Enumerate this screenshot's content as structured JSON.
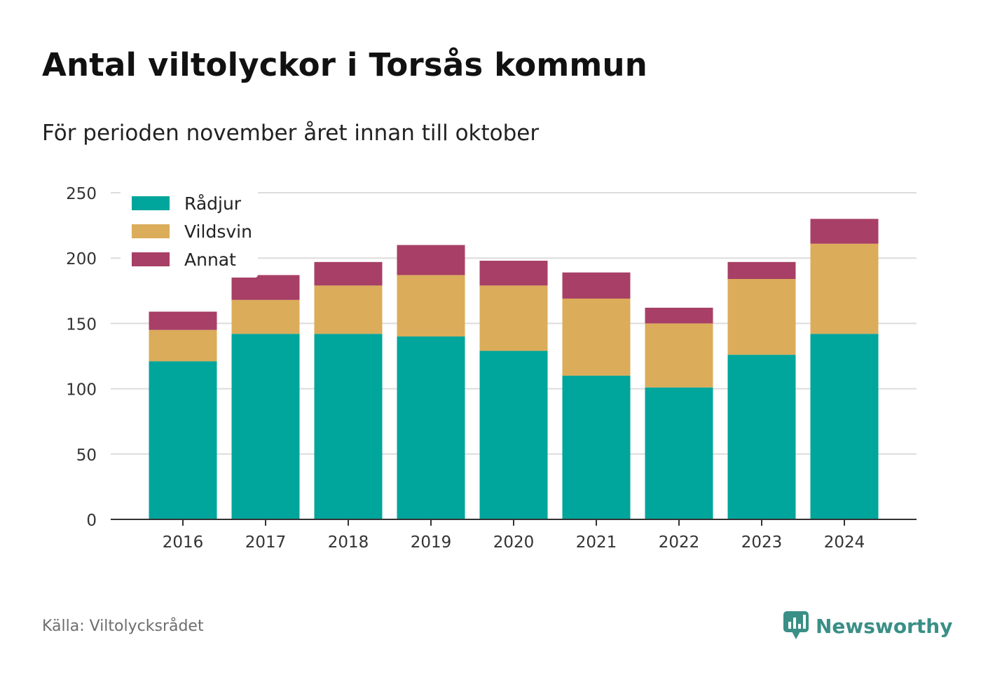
{
  "title": "Antal viltolyckor i Torsås kommun",
  "subtitle": "För perioden november året innan till oktober",
  "source": "Källa: Viltolycksrådet",
  "brand": {
    "name": "Newsworthy",
    "icon": "newsworthy-logo-icon",
    "color": "#3a8f86"
  },
  "colors": {
    "Rådjur": "#00a59b",
    "Vildsvin": "#dbac5a",
    "Annat": "#a83f66"
  },
  "chart_data": {
    "type": "bar",
    "stacked": true,
    "categories": [
      "2016",
      "2017",
      "2018",
      "2019",
      "2020",
      "2021",
      "2022",
      "2023",
      "2024"
    ],
    "series": [
      {
        "name": "Rådjur",
        "values": [
          121,
          142,
          142,
          140,
          129,
          110,
          101,
          126,
          142
        ]
      },
      {
        "name": "Vildsvin",
        "values": [
          24,
          26,
          37,
          47,
          50,
          59,
          49,
          58,
          69
        ]
      },
      {
        "name": "Annat",
        "values": [
          14,
          19,
          18,
          23,
          19,
          20,
          12,
          13,
          19
        ]
      }
    ],
    "ylim": [
      0,
      250
    ],
    "yticks": [
      0,
      50,
      100,
      150,
      200,
      250
    ],
    "xlabel": "",
    "ylabel": "",
    "grid": true,
    "legend": "top-left"
  }
}
